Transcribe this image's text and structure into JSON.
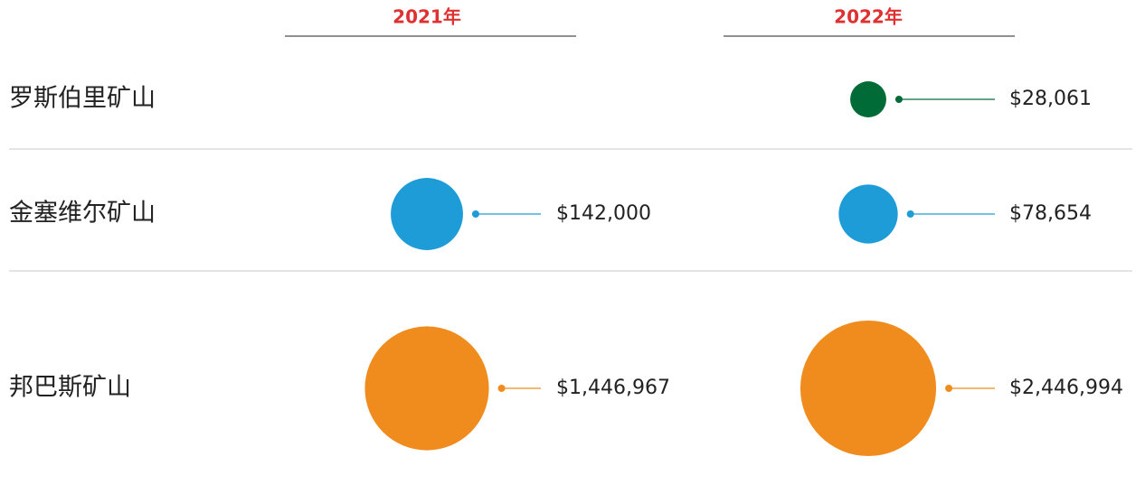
{
  "chart_data": {
    "type": "bubble",
    "columns": [
      "2021年",
      "2022年"
    ],
    "categories": [
      "罗斯伯里矿山",
      "金塞维尔矿山",
      "邦巴斯矿山"
    ],
    "colors": [
      "#006b36",
      "#1e9cd7",
      "#f08c1e"
    ],
    "series": [
      {
        "name": "2021年",
        "values": [
          null,
          142000,
          1446967
        ],
        "value_labels": [
          null,
          "$142,000",
          "$1,446,967"
        ]
      },
      {
        "name": "2022年",
        "values": [
          28061,
          78654,
          2446994
        ],
        "value_labels": [
          "$28,061",
          "$78,654",
          "$2,446,994"
        ]
      }
    ]
  }
}
